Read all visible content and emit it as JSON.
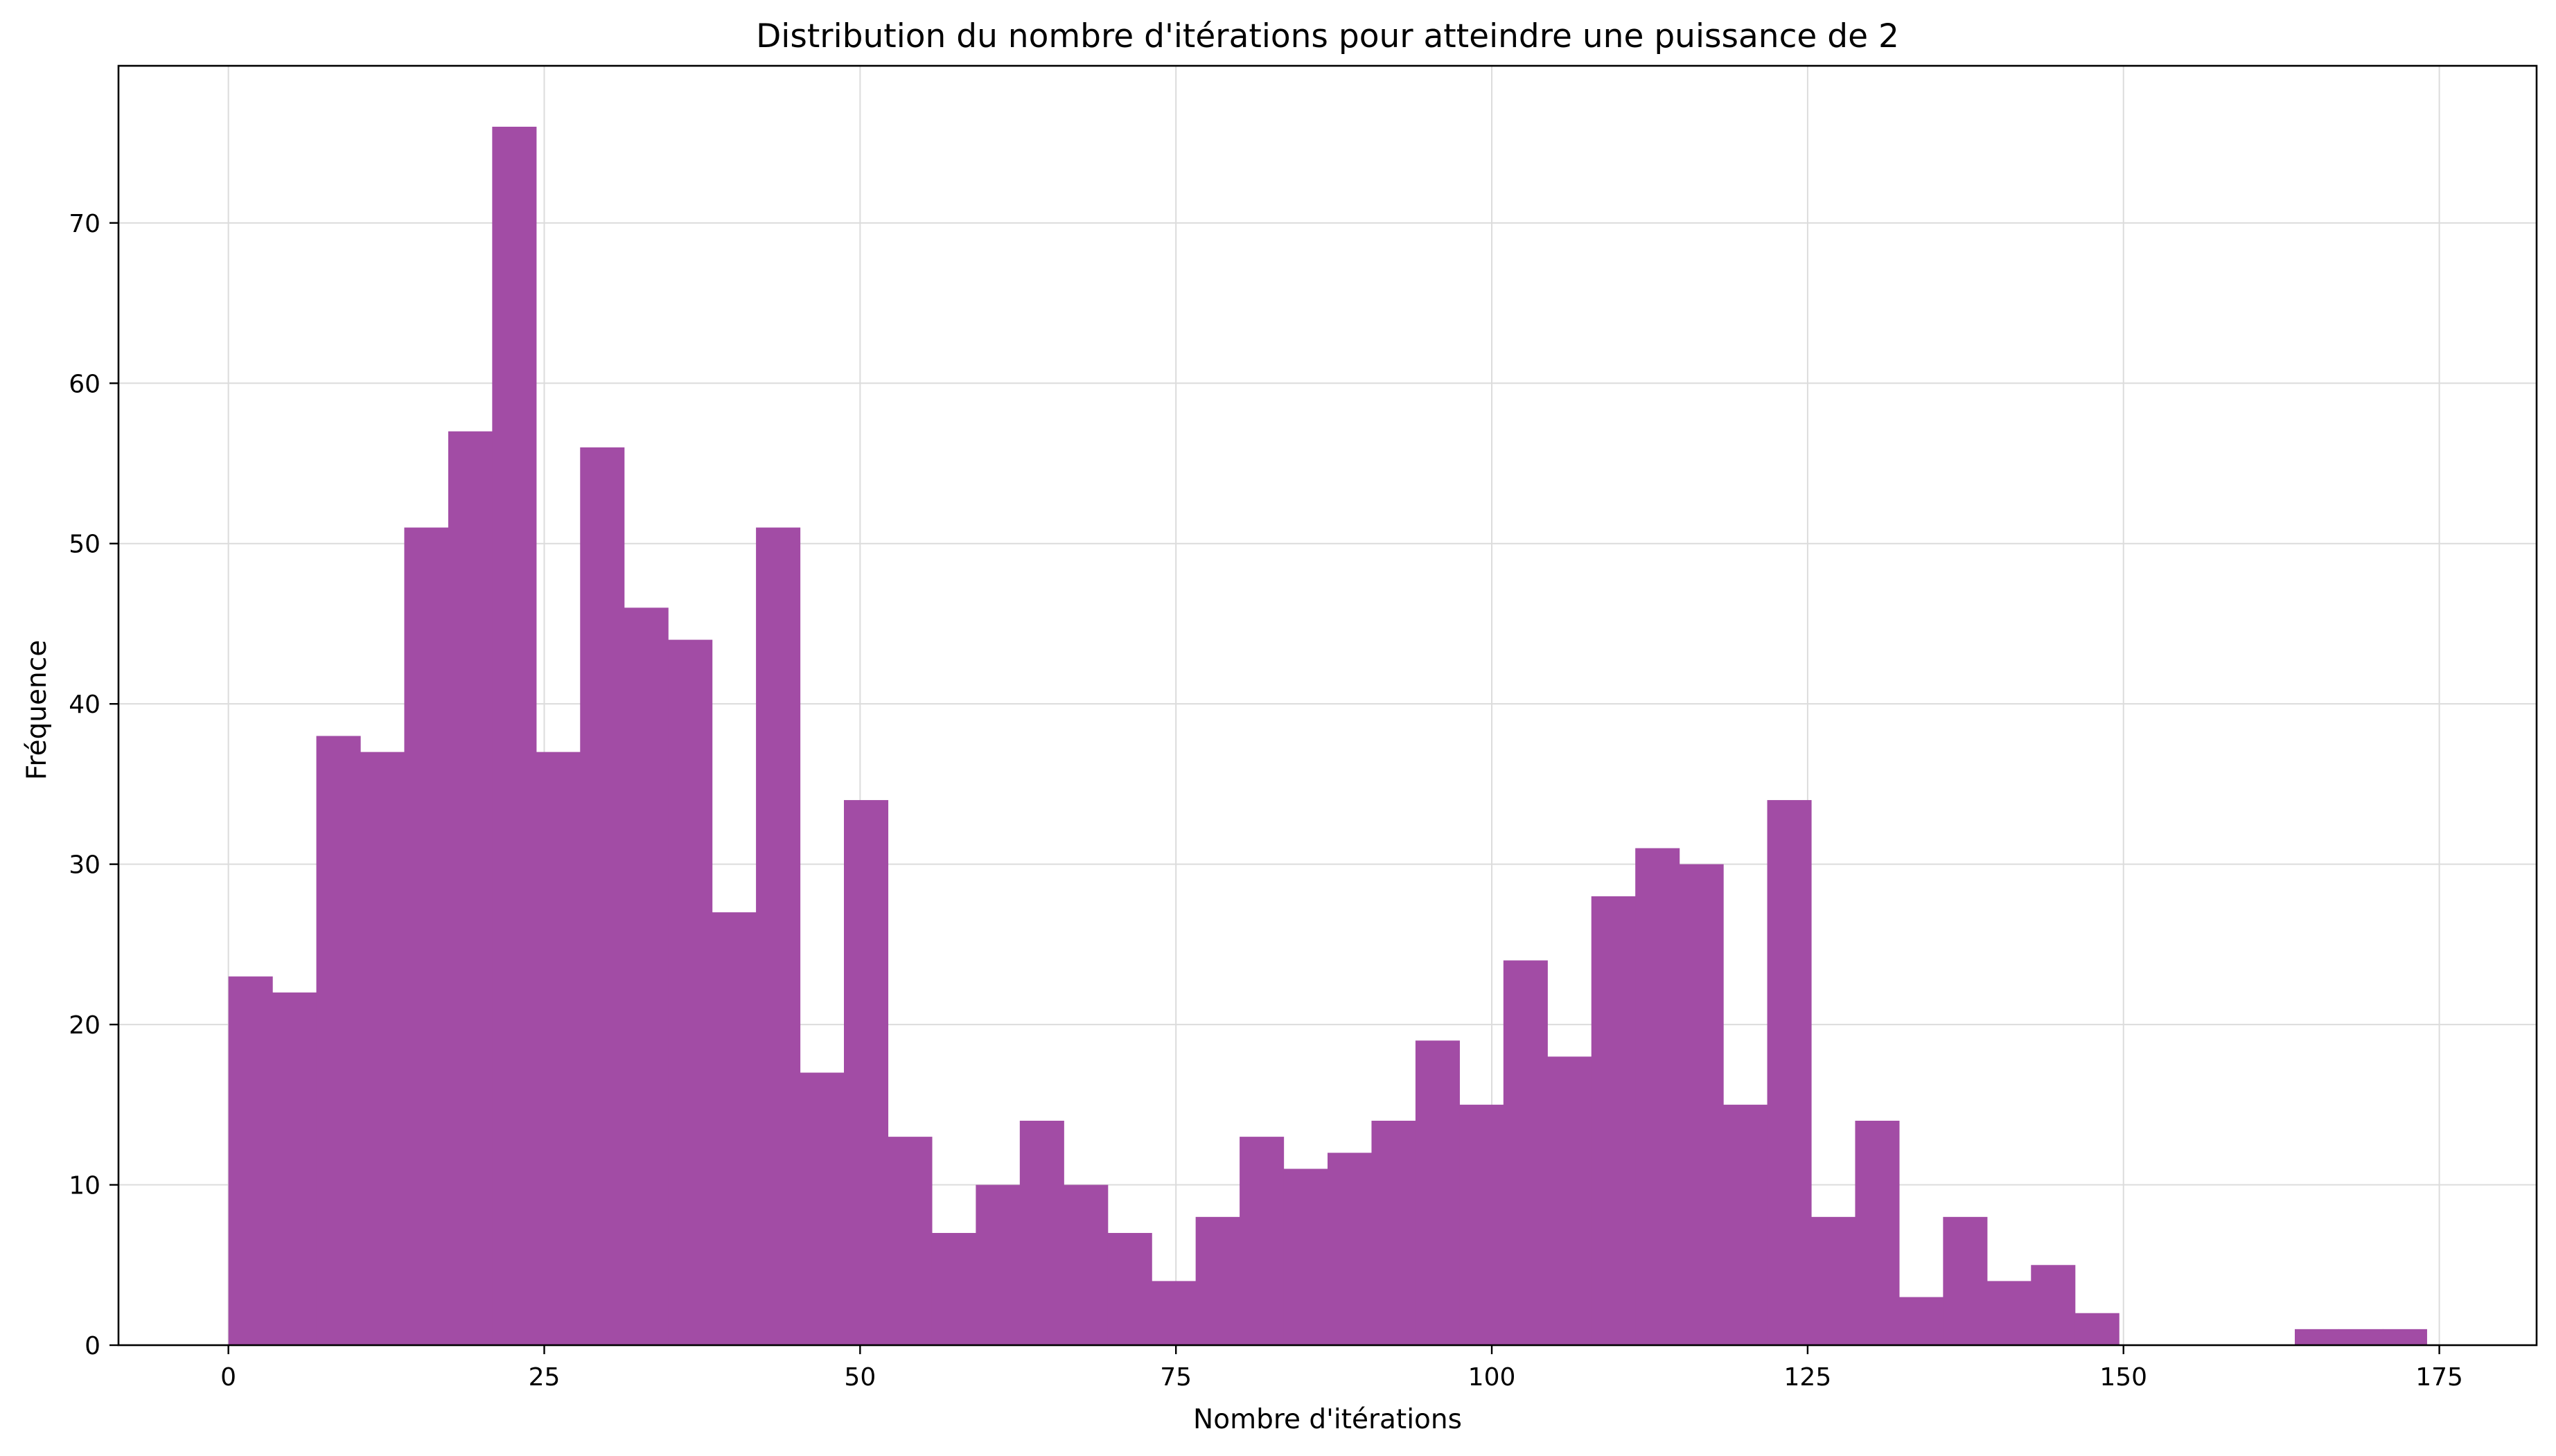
{
  "chart_data": {
    "type": "bar",
    "title": "Distribution du nombre d'itérations pour atteindre une puissance de 2",
    "xlabel": "Nombre d'itérations",
    "ylabel": "Fréquence",
    "xlim": [
      -8.7,
      182.7
    ],
    "ylim": [
      0,
      79.8
    ],
    "xticks": [
      0,
      25,
      50,
      75,
      100,
      125,
      150,
      175
    ],
    "yticks": [
      0,
      10,
      20,
      30,
      40,
      50,
      60,
      70
    ],
    "grid": true,
    "bar_color": "#a24ca5",
    "bin_start": 0,
    "bin_width": 3.48,
    "values": [
      23,
      22,
      38,
      37,
      51,
      57,
      76,
      37,
      56,
      46,
      44,
      27,
      51,
      17,
      34,
      13,
      7,
      10,
      14,
      10,
      7,
      4,
      8,
      13,
      11,
      12,
      14,
      19,
      15,
      24,
      18,
      28,
      31,
      30,
      15,
      34,
      8,
      14,
      3,
      8,
      4,
      5,
      2,
      0,
      0,
      0,
      0,
      1,
      1,
      1
    ]
  }
}
